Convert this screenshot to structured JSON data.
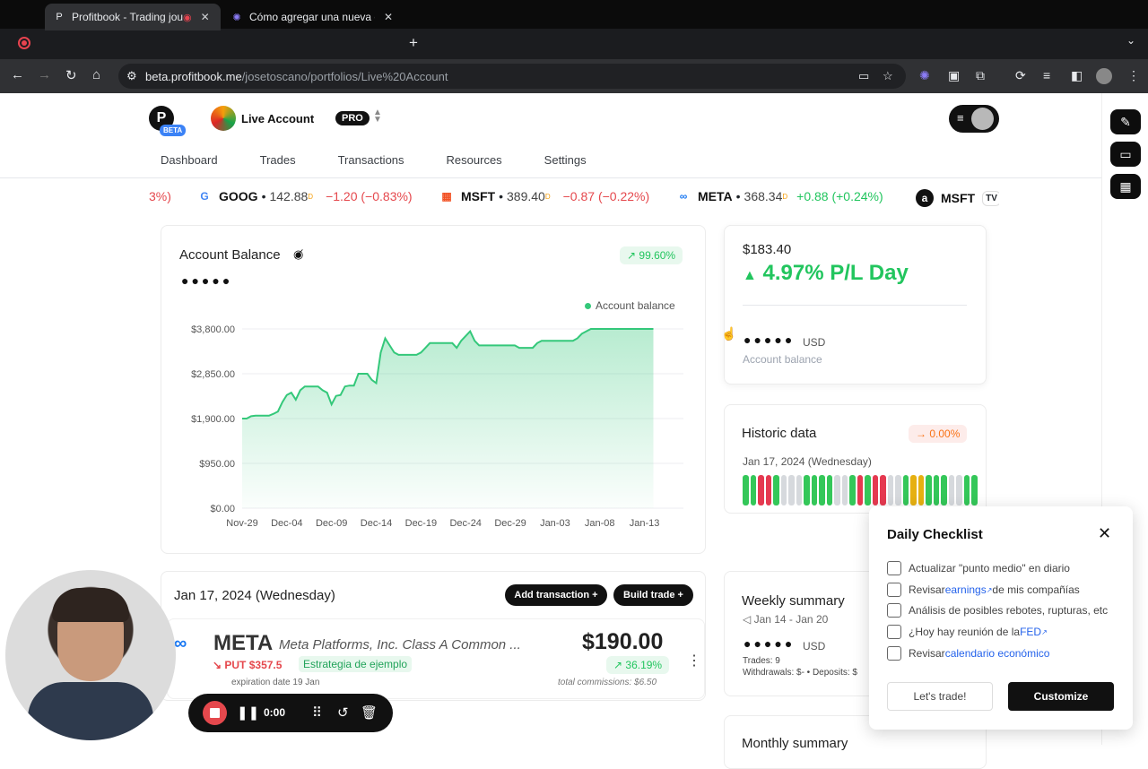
{
  "browser": {
    "tabs": [
      {
        "title": "Profitbook - Trading journ",
        "favicon": "P",
        "close": "✕",
        "rec": "◉"
      },
      {
        "title": "Cómo agregar una nueva cue",
        "favicon": "✺",
        "close": "✕"
      }
    ],
    "url_host": "beta.profitbook.me",
    "url_path": "/josetoscano/portfolios/Live%20Account"
  },
  "header": {
    "logo_letter": "P",
    "beta_label": "BETA",
    "account_name": "Live Account",
    "plan_badge": "PRO"
  },
  "nav": {
    "items": [
      "Dashboard",
      "Trades",
      "Transactions",
      "Resources",
      "Settings"
    ]
  },
  "ticker": {
    "partial_left": "3%)",
    "items": [
      {
        "symbol": "GOOG",
        "price": "142.88",
        "change": "−1.20 (−0.83%)",
        "direction": "down",
        "logo": "G"
      },
      {
        "symbol": "MSFT",
        "price": "389.40",
        "change": "−0.87 (−0.22%)",
        "direction": "down",
        "logo": "▦"
      },
      {
        "symbol": "META",
        "price": "368.34",
        "change": "+0.88 (+0.24%)",
        "direction": "up",
        "logo": "∞"
      },
      {
        "symbol": "MSFT",
        "logo": "a"
      }
    ],
    "delayed_marker": "D",
    "tv_mark": "TV"
  },
  "balance_card": {
    "title": "Account Balance",
    "change_badge": "↗ 99.60%",
    "masked_value": "●●●●●",
    "legend": "Account balance"
  },
  "chart_data": {
    "type": "area",
    "title": "Account Balance",
    "legend": [
      "Account balance"
    ],
    "y_ticks": [
      "$0.00",
      "$950.00",
      "$1,900.00",
      "$2,850.00",
      "$3,800.00"
    ],
    "x_ticks": [
      "Nov-29",
      "Dec-04",
      "Dec-09",
      "Dec-14",
      "Dec-19",
      "Dec-24",
      "Dec-29",
      "Jan-03",
      "Jan-08",
      "Jan-13"
    ],
    "ylim": [
      0,
      3800
    ],
    "series": [
      {
        "name": "Account balance",
        "color": "#34c87a",
        "x_index": [
          0,
          0.5,
          1,
          1.5,
          2,
          2.5,
          3,
          3.5,
          4,
          4.5,
          5,
          5.5,
          6,
          6.5,
          7,
          7.5,
          8,
          8.5,
          9,
          9.5,
          10,
          10.5,
          11,
          11.5,
          12,
          12.5,
          13,
          13.5,
          14,
          14.5,
          15,
          15.5,
          16,
          16.5,
          17,
          17.5,
          18,
          18.5,
          19,
          19.5,
          20,
          20.5,
          21,
          21.5,
          22,
          22.5,
          23,
          23.5,
          24,
          24.5,
          25,
          25.5,
          26,
          26.5,
          27,
          27.5,
          28,
          28.5,
          29,
          29.5,
          30,
          30.5,
          31,
          31.5,
          32,
          32.5,
          33,
          33.5,
          34,
          34.5,
          35,
          35.5,
          36,
          36.5,
          37,
          37.5,
          38,
          38.5,
          39,
          39.5,
          40,
          40.5,
          41,
          41.5,
          42,
          42.5,
          43,
          43.5,
          44,
          44.5,
          45,
          45.5,
          46
        ],
        "values": [
          1900,
          1900,
          1950,
          1960,
          1960,
          1960,
          1960,
          2000,
          2050,
          2250,
          2400,
          2450,
          2300,
          2500,
          2580,
          2580,
          2580,
          2580,
          2500,
          2450,
          2200,
          2380,
          2400,
          2580,
          2600,
          2600,
          2850,
          2850,
          2850,
          2720,
          2650,
          3300,
          3600,
          3450,
          3300,
          3250,
          3250,
          3250,
          3250,
          3250,
          3300,
          3400,
          3500,
          3500,
          3500,
          3500,
          3500,
          3500,
          3400,
          3550,
          3650,
          3750,
          3550,
          3450,
          3450,
          3450,
          3450,
          3450,
          3450,
          3450,
          3450,
          3450,
          3400,
          3400,
          3400,
          3400,
          3500,
          3550,
          3550,
          3550,
          3550,
          3550,
          3550,
          3550,
          3550,
          3600,
          3700,
          3750,
          3800,
          3800,
          3800,
          3800,
          3800,
          3800,
          3800,
          3800,
          3800,
          3800,
          3800,
          3800,
          3800,
          3800,
          3800
        ]
      }
    ],
    "grid": true
  },
  "pl_card": {
    "amount": "$183.40",
    "pct": "4.97% P/L Day",
    "masked_value": "●●●●●",
    "currency": "USD",
    "caption": "Account balance"
  },
  "historic_card": {
    "title": "Historic data",
    "badge": "→ 0.00%",
    "date": "Jan 17, 2024 (Wednesday)",
    "day_colors": [
      "#34c759",
      "#34c759",
      "#e53950",
      "#e53950",
      "#34c759",
      "#d6d9dd",
      "#d6d9dd",
      "#d6d9dd",
      "#34c759",
      "#34c759",
      "#34c759",
      "#34c759",
      "#d6d9dd",
      "#d6d9dd",
      "#34c759",
      "#e53950",
      "#34c759",
      "#e53950",
      "#e53950",
      "#d6d9dd",
      "#d6d9dd",
      "#34c759",
      "#e6b011",
      "#e6b011",
      "#34c759",
      "#34c759",
      "#34c759",
      "#d6d9dd",
      "#d6d9dd",
      "#34c759",
      "#34c759"
    ]
  },
  "day_section": {
    "title": "Jan 17, 2024 (Wednesday)",
    "add_transaction": "Add transaction +",
    "build_trade": "Build trade +"
  },
  "trade": {
    "logo": "∞",
    "symbol": "META",
    "name": "Meta Platforms, Inc. Class A Common ...",
    "option": "↘ PUT $357.5",
    "strategy": "Estrategia de ejemplo",
    "expiration": "expiration date 19 Jan",
    "price": "$190.00",
    "change": "↗ 36.19%",
    "commissions": "total commissions: $6.50"
  },
  "weekly": {
    "title": "Weekly summary",
    "range": "◁ Jan 14 - Jan 20",
    "masked_value": "●●●●●",
    "currency": "USD",
    "trades": "Trades: 9",
    "flows": "Withdrawals: $- • Deposits: $"
  },
  "monthly": {
    "title": "Monthly summary"
  },
  "checklist": {
    "title": "Daily Checklist",
    "items": [
      {
        "pre": "Actualizar \"punto medio\" en diario",
        "link": "",
        "post": ""
      },
      {
        "pre": "Revisar ",
        "link": "earnings",
        "post": " de mis compañías"
      },
      {
        "pre": "Análisis de posibles rebotes, rupturas, etc",
        "link": "",
        "post": ""
      },
      {
        "pre": "¿Hoy hay reunión de la ",
        "link": "FED",
        "post": ""
      },
      {
        "pre": "Revisar ",
        "link": "calendario económico",
        "post": ""
      }
    ],
    "lets_trade": "Let's trade!",
    "customize": "Customize"
  },
  "recorder": {
    "time": "0:00"
  },
  "colors": {
    "accent_green": "#22c55e",
    "down_red": "#e5484d",
    "brand_dark": "#111111"
  }
}
